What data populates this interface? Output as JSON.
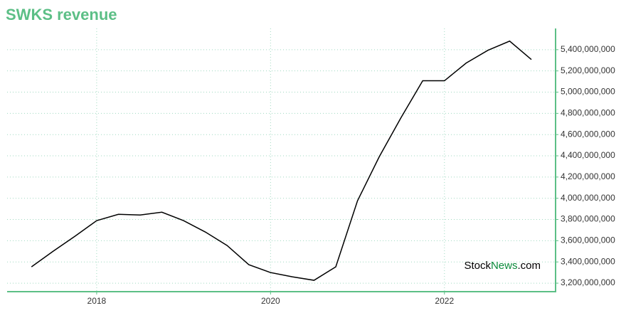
{
  "chart_data": {
    "type": "line",
    "title": "SWKS revenue",
    "x": [
      2017.25,
      2017.5,
      2017.75,
      2018.0,
      2018.25,
      2018.5,
      2018.75,
      2019.0,
      2019.25,
      2019.5,
      2019.75,
      2020.0,
      2020.25,
      2020.5,
      2020.75,
      2021.0,
      2021.25,
      2021.5,
      2021.75,
      2022.0,
      2022.25,
      2022.5,
      2022.75,
      2023.0
    ],
    "values": [
      3354000000,
      3501000000,
      3642000000,
      3789000000,
      3849000000,
      3842000000,
      3869000000,
      3789000000,
      3682000000,
      3555000000,
      3374000000,
      3300000000,
      3260000000,
      3227000000,
      3354000000,
      3976000000,
      4391000000,
      4759000000,
      5107000000,
      5107000000,
      5274000000,
      5394000000,
      5481000000,
      5307000000
    ],
    "color": "#000000",
    "xlim": [
      2016.97,
      2023.27
    ],
    "xticks": [
      2018,
      2020,
      2022
    ],
    "ylim": [
      3120000000,
      5600000000
    ],
    "yticks": [
      {
        "value": 3200000000,
        "label": "3,200,000,000"
      },
      {
        "value": 3400000000,
        "label": "3,400,000,000"
      },
      {
        "value": 3600000000,
        "label": "3,600,000,000"
      },
      {
        "value": 3800000000,
        "label": "3,800,000,000"
      },
      {
        "value": 4000000000,
        "label": "4,000,000,000"
      },
      {
        "value": 4200000000,
        "label": "4,200,000,000"
      },
      {
        "value": 4400000000,
        "label": "4,400,000,000"
      },
      {
        "value": 4600000000,
        "label": "4,600,000,000"
      },
      {
        "value": 4800000000,
        "label": "4,800,000,000"
      },
      {
        "value": 5000000000,
        "label": "5,000,000,000"
      },
      {
        "value": 5200000000,
        "label": "5,200,000,000"
      },
      {
        "value": 5400000000,
        "label": "5,400,000,000"
      }
    ],
    "grid": true,
    "watermark": [
      "Stock",
      "News",
      ".com"
    ]
  }
}
